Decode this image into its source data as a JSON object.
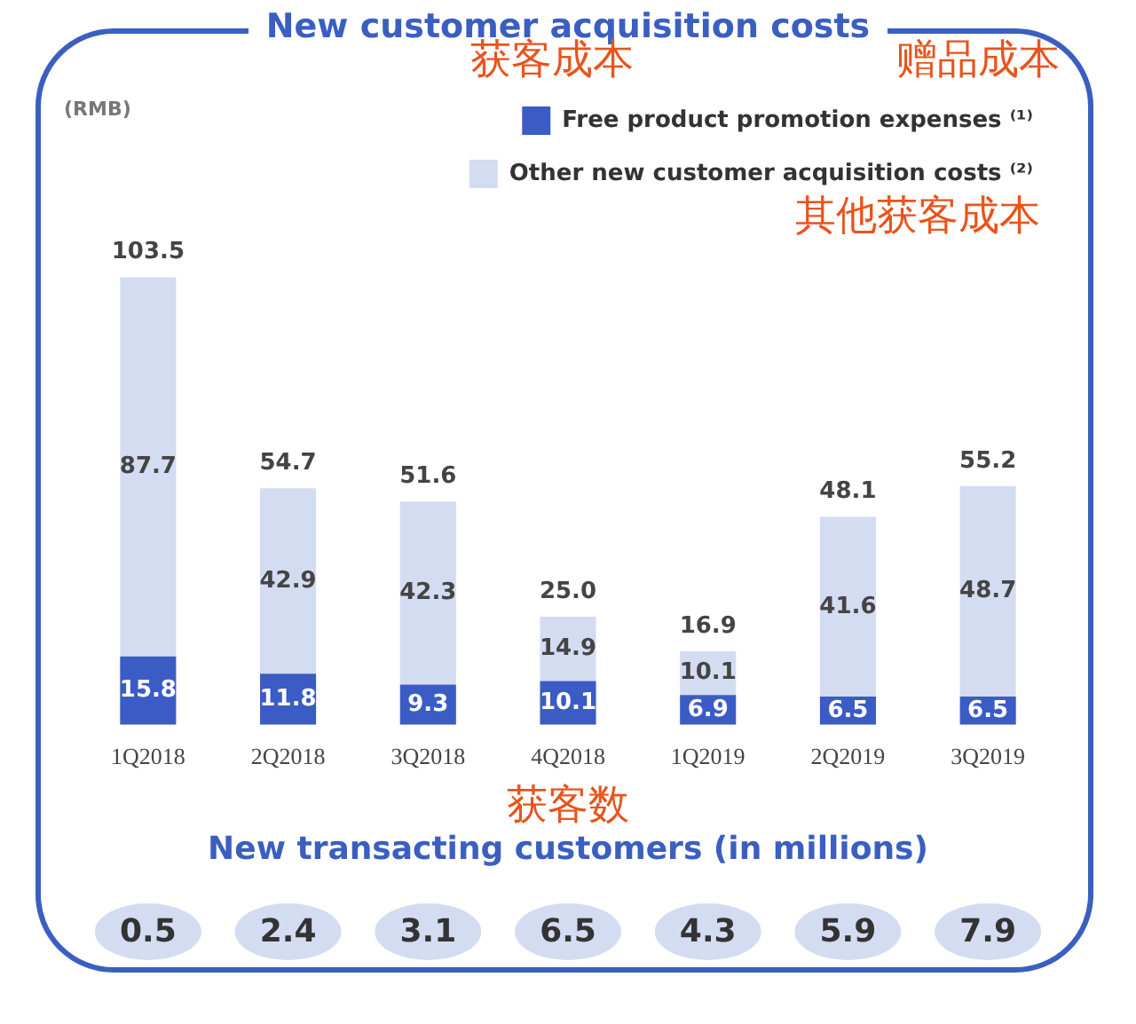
{
  "chart_data": [
    {
      "type": "bar",
      "title": "New customer acquisition costs",
      "ylabel": "(RMB)",
      "stacked": true,
      "tick_labels": "x",
      "legend": "top right",
      "data_labels": true,
      "categories": [
        "1Q2018",
        "2Q2018",
        "3Q2018",
        "4Q2018",
        "1Q2019",
        "2Q2019",
        "3Q2019"
      ],
      "series": [
        {
          "name": "Free product promotion expenses ⁽¹⁾",
          "color": "#3b5cc4",
          "values": [
            15.8,
            11.8,
            9.3,
            10.1,
            6.9,
            6.5,
            6.5
          ]
        },
        {
          "name": "Other new customer acquisition costs ⁽²⁾",
          "color": "#d3dcf1",
          "values": [
            87.7,
            42.9,
            42.3,
            14.9,
            10.1,
            41.6,
            48.7
          ]
        }
      ],
      "totals": [
        "103.5",
        "54.7",
        "51.6",
        "25.0",
        "16.9",
        "48.1",
        "55.2"
      ],
      "annotations": [
        "获客成本",
        "赠品成本",
        "其他获客成本"
      ]
    },
    {
      "type": "other",
      "title": "New transacting customers (in millions)",
      "annotations": [
        "获客数"
      ],
      "data_labels": true,
      "values": [
        0.5,
        2.4,
        3.1,
        6.5,
        4.3,
        5.9,
        7.9
      ]
    }
  ]
}
